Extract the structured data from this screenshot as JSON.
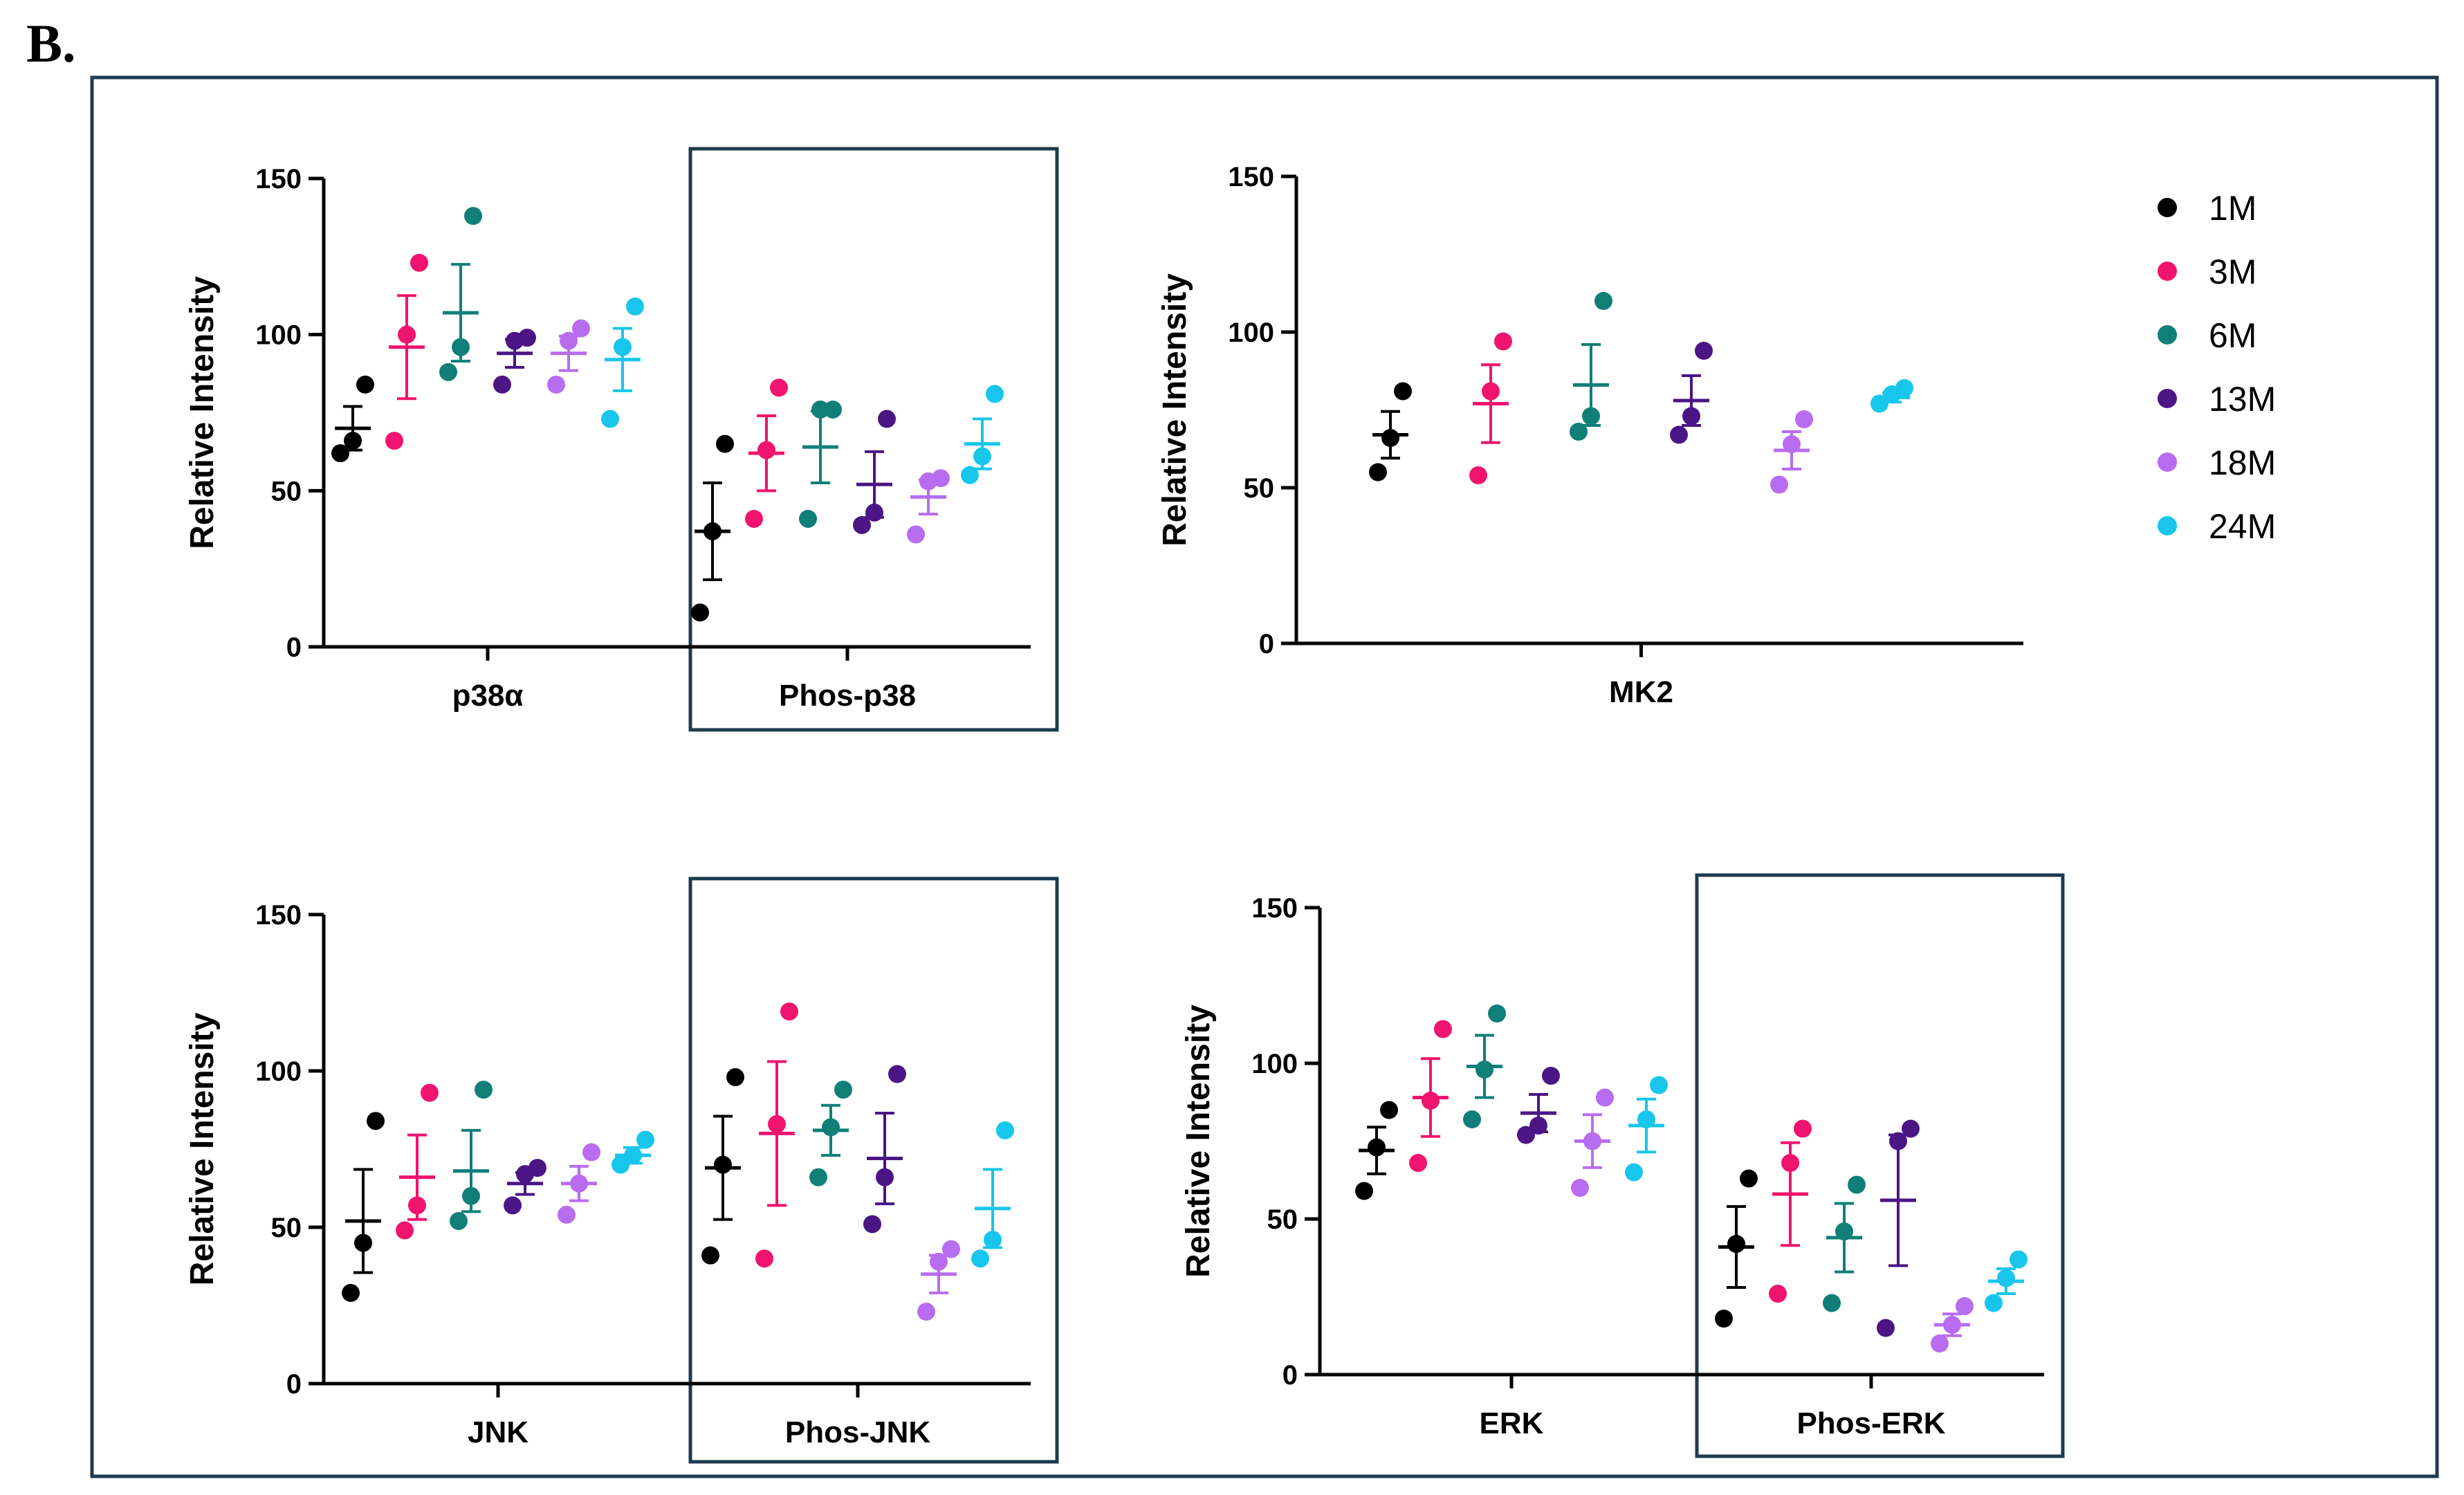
{
  "figure": {
    "panel_label": "B.",
    "colors": {
      "frame": "#1d3b4f",
      "axis": "#000000"
    }
  },
  "legend": {
    "items": [
      {
        "label": "1M",
        "color": "#000000"
      },
      {
        "label": "3M",
        "color": "#f0146e"
      },
      {
        "label": "6M",
        "color": "#0f7f78"
      },
      {
        "label": "13M",
        "color": "#4b1585"
      },
      {
        "label": "18M",
        "color": "#b86cf0"
      },
      {
        "label": "24M",
        "color": "#18c6ec"
      }
    ]
  },
  "chart_data": [
    {
      "type": "scatter",
      "title": "",
      "ylabel": "Relative Intensity",
      "ylim": [
        0,
        150
      ],
      "yticks": [
        0,
        50,
        100,
        150
      ],
      "series_labels": [
        "1M",
        "3M",
        "6M",
        "13M",
        "18M",
        "24M"
      ],
      "groups": [
        {
          "label": "p38α",
          "boxed": false,
          "series": [
            {
              "points": [
                62,
                66,
                84
              ],
              "mean": 70,
              "sem": 7
            },
            {
              "points": [
                66,
                100,
                123
              ],
              "mean": 96,
              "sem": 16.5
            },
            {
              "points": [
                88,
                96,
                138
              ],
              "mean": 107,
              "sem": 15.5
            },
            {
              "points": [
                84,
                98,
                99
              ],
              "mean": 94,
              "sem": 4.5
            },
            {
              "points": [
                84,
                98,
                102
              ],
              "mean": 94,
              "sem": 5.5
            },
            {
              "points": [
                73,
                96,
                109
              ],
              "mean": 92,
              "sem": 10
            }
          ]
        },
        {
          "label": "Phos-p38",
          "boxed": true,
          "series": [
            {
              "points": [
                11,
                37,
                65
              ],
              "mean": 37,
              "sem": 15.5
            },
            {
              "points": [
                41,
                63,
                83
              ],
              "mean": 62,
              "sem": 12
            },
            {
              "points": [
                41,
                76,
                76
              ],
              "mean": 64,
              "sem": 11.5
            },
            {
              "points": [
                39,
                43,
                73
              ],
              "mean": 52,
              "sem": 10.5
            },
            {
              "points": [
                36,
                53,
                54
              ],
              "mean": 48,
              "sem": 5.5
            },
            {
              "points": [
                55,
                61,
                81
              ],
              "mean": 65,
              "sem": 8
            }
          ]
        }
      ]
    },
    {
      "type": "scatter",
      "title": "",
      "ylabel": "Relative Intensity",
      "ylim": [
        0,
        150
      ],
      "yticks": [
        0,
        50,
        100,
        150
      ],
      "series_labels": [
        "1M",
        "3M",
        "6M",
        "13M",
        "18M",
        "24M"
      ],
      "groups": [
        {
          "label": "MK2",
          "boxed": false,
          "series": [
            {
              "points": [
                55,
                66,
                81
              ],
              "mean": 67,
              "sem": 7.5
            },
            {
              "points": [
                54,
                81,
                97
              ],
              "mean": 77,
              "sem": 12.5
            },
            {
              "points": [
                68,
                73,
                110
              ],
              "mean": 83,
              "sem": 13
            },
            {
              "points": [
                67,
                73,
                94
              ],
              "mean": 78,
              "sem": 8
            },
            {
              "points": [
                51,
                64,
                72
              ],
              "mean": 62,
              "sem": 6
            },
            {
              "points": [
                77,
                80,
                82
              ],
              "mean": 79,
              "sem": 1.5
            }
          ]
        }
      ]
    },
    {
      "type": "scatter",
      "title": "",
      "ylabel": "Relative Intensity",
      "ylim": [
        0,
        150
      ],
      "yticks": [
        0,
        50,
        100,
        150
      ],
      "series_labels": [
        "1M",
        "3M",
        "6M",
        "13M",
        "18M",
        "24M"
      ],
      "groups": [
        {
          "label": "JNK",
          "boxed": false,
          "series": [
            {
              "points": [
                29,
                45,
                84
              ],
              "mean": 52,
              "sem": 16.5
            },
            {
              "points": [
                49,
                57,
                93
              ],
              "mean": 66,
              "sem": 13.5
            },
            {
              "points": [
                52,
                60,
                94
              ],
              "mean": 68,
              "sem": 13
            },
            {
              "points": [
                57,
                67,
                69
              ],
              "mean": 64,
              "sem": 3.5
            },
            {
              "points": [
                54,
                64,
                74
              ],
              "mean": 64,
              "sem": 5.5
            },
            {
              "points": [
                70,
                73,
                78
              ],
              "mean": 73,
              "sem": 2.5
            }
          ]
        },
        {
          "label": "Phos-JNK",
          "boxed": true,
          "series": [
            {
              "points": [
                41,
                70,
                98
              ],
              "mean": 69,
              "sem": 16.5
            },
            {
              "points": [
                40,
                83,
                119
              ],
              "mean": 80,
              "sem": 23
            },
            {
              "points": [
                66,
                82,
                94
              ],
              "mean": 81,
              "sem": 8
            },
            {
              "points": [
                51,
                66,
                99
              ],
              "mean": 72,
              "sem": 14.5
            },
            {
              "points": [
                23,
                39,
                43
              ],
              "mean": 35,
              "sem": 6
            },
            {
              "points": [
                40,
                46,
                81
              ],
              "mean": 56,
              "sem": 12.5
            }
          ]
        }
      ]
    },
    {
      "type": "scatter",
      "title": "",
      "ylabel": "Relative Intensity",
      "ylim": [
        0,
        150
      ],
      "yticks": [
        0,
        50,
        100,
        150
      ],
      "series_labels": [
        "1M",
        "3M",
        "6M",
        "13M",
        "18M",
        "24M"
      ],
      "groups": [
        {
          "label": "ERK",
          "boxed": false,
          "series": [
            {
              "points": [
                59,
                73,
                85
              ],
              "mean": 72,
              "sem": 7.5
            },
            {
              "points": [
                68,
                88,
                111
              ],
              "mean": 89,
              "sem": 12.5
            },
            {
              "points": [
                82,
                98,
                116
              ],
              "mean": 99,
              "sem": 10
            },
            {
              "points": [
                77,
                80,
                96
              ],
              "mean": 84,
              "sem": 6
            },
            {
              "points": [
                60,
                75,
                89
              ],
              "mean": 75,
              "sem": 8.5
            },
            {
              "points": [
                65,
                82,
                93
              ],
              "mean": 80,
              "sem": 8.5
            }
          ]
        },
        {
          "label": "Phos-ERK",
          "boxed": true,
          "series": [
            {
              "points": [
                18,
                42,
                63
              ],
              "mean": 41,
              "sem": 13
            },
            {
              "points": [
                26,
                68,
                79
              ],
              "mean": 58,
              "sem": 16.5
            },
            {
              "points": [
                23,
                46,
                61
              ],
              "mean": 44,
              "sem": 11
            },
            {
              "points": [
                15,
                75,
                79
              ],
              "mean": 56,
              "sem": 21
            },
            {
              "points": [
                10,
                16,
                22
              ],
              "mean": 16,
              "sem": 3.5
            },
            {
              "points": [
                23,
                31,
                37
              ],
              "mean": 30,
              "sem": 4
            }
          ]
        }
      ]
    }
  ]
}
